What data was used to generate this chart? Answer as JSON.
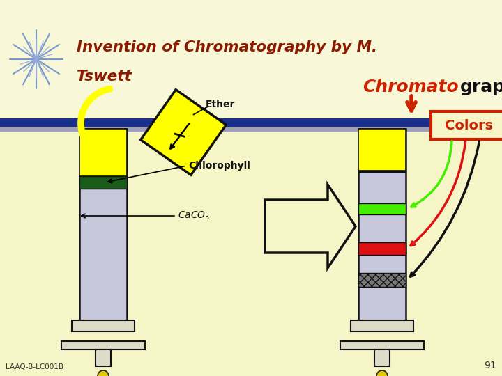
{
  "slide_bg": "#F5F5C8",
  "header_bg": "#F5F5C8",
  "title_line1": "Invention of Chromatography by M.",
  "title_line2": "Tswett",
  "title_color": "#8B1A00",
  "header_bar_blue": "#1A2E8B",
  "header_bar_grey": "#A0A0B8",
  "chromatography_red": "#CC2200",
  "chromatography_black": "#111111",
  "colors_box_color": "#CC2200",
  "footnote": "LAAQ-B-LC001B",
  "page_num": "91"
}
